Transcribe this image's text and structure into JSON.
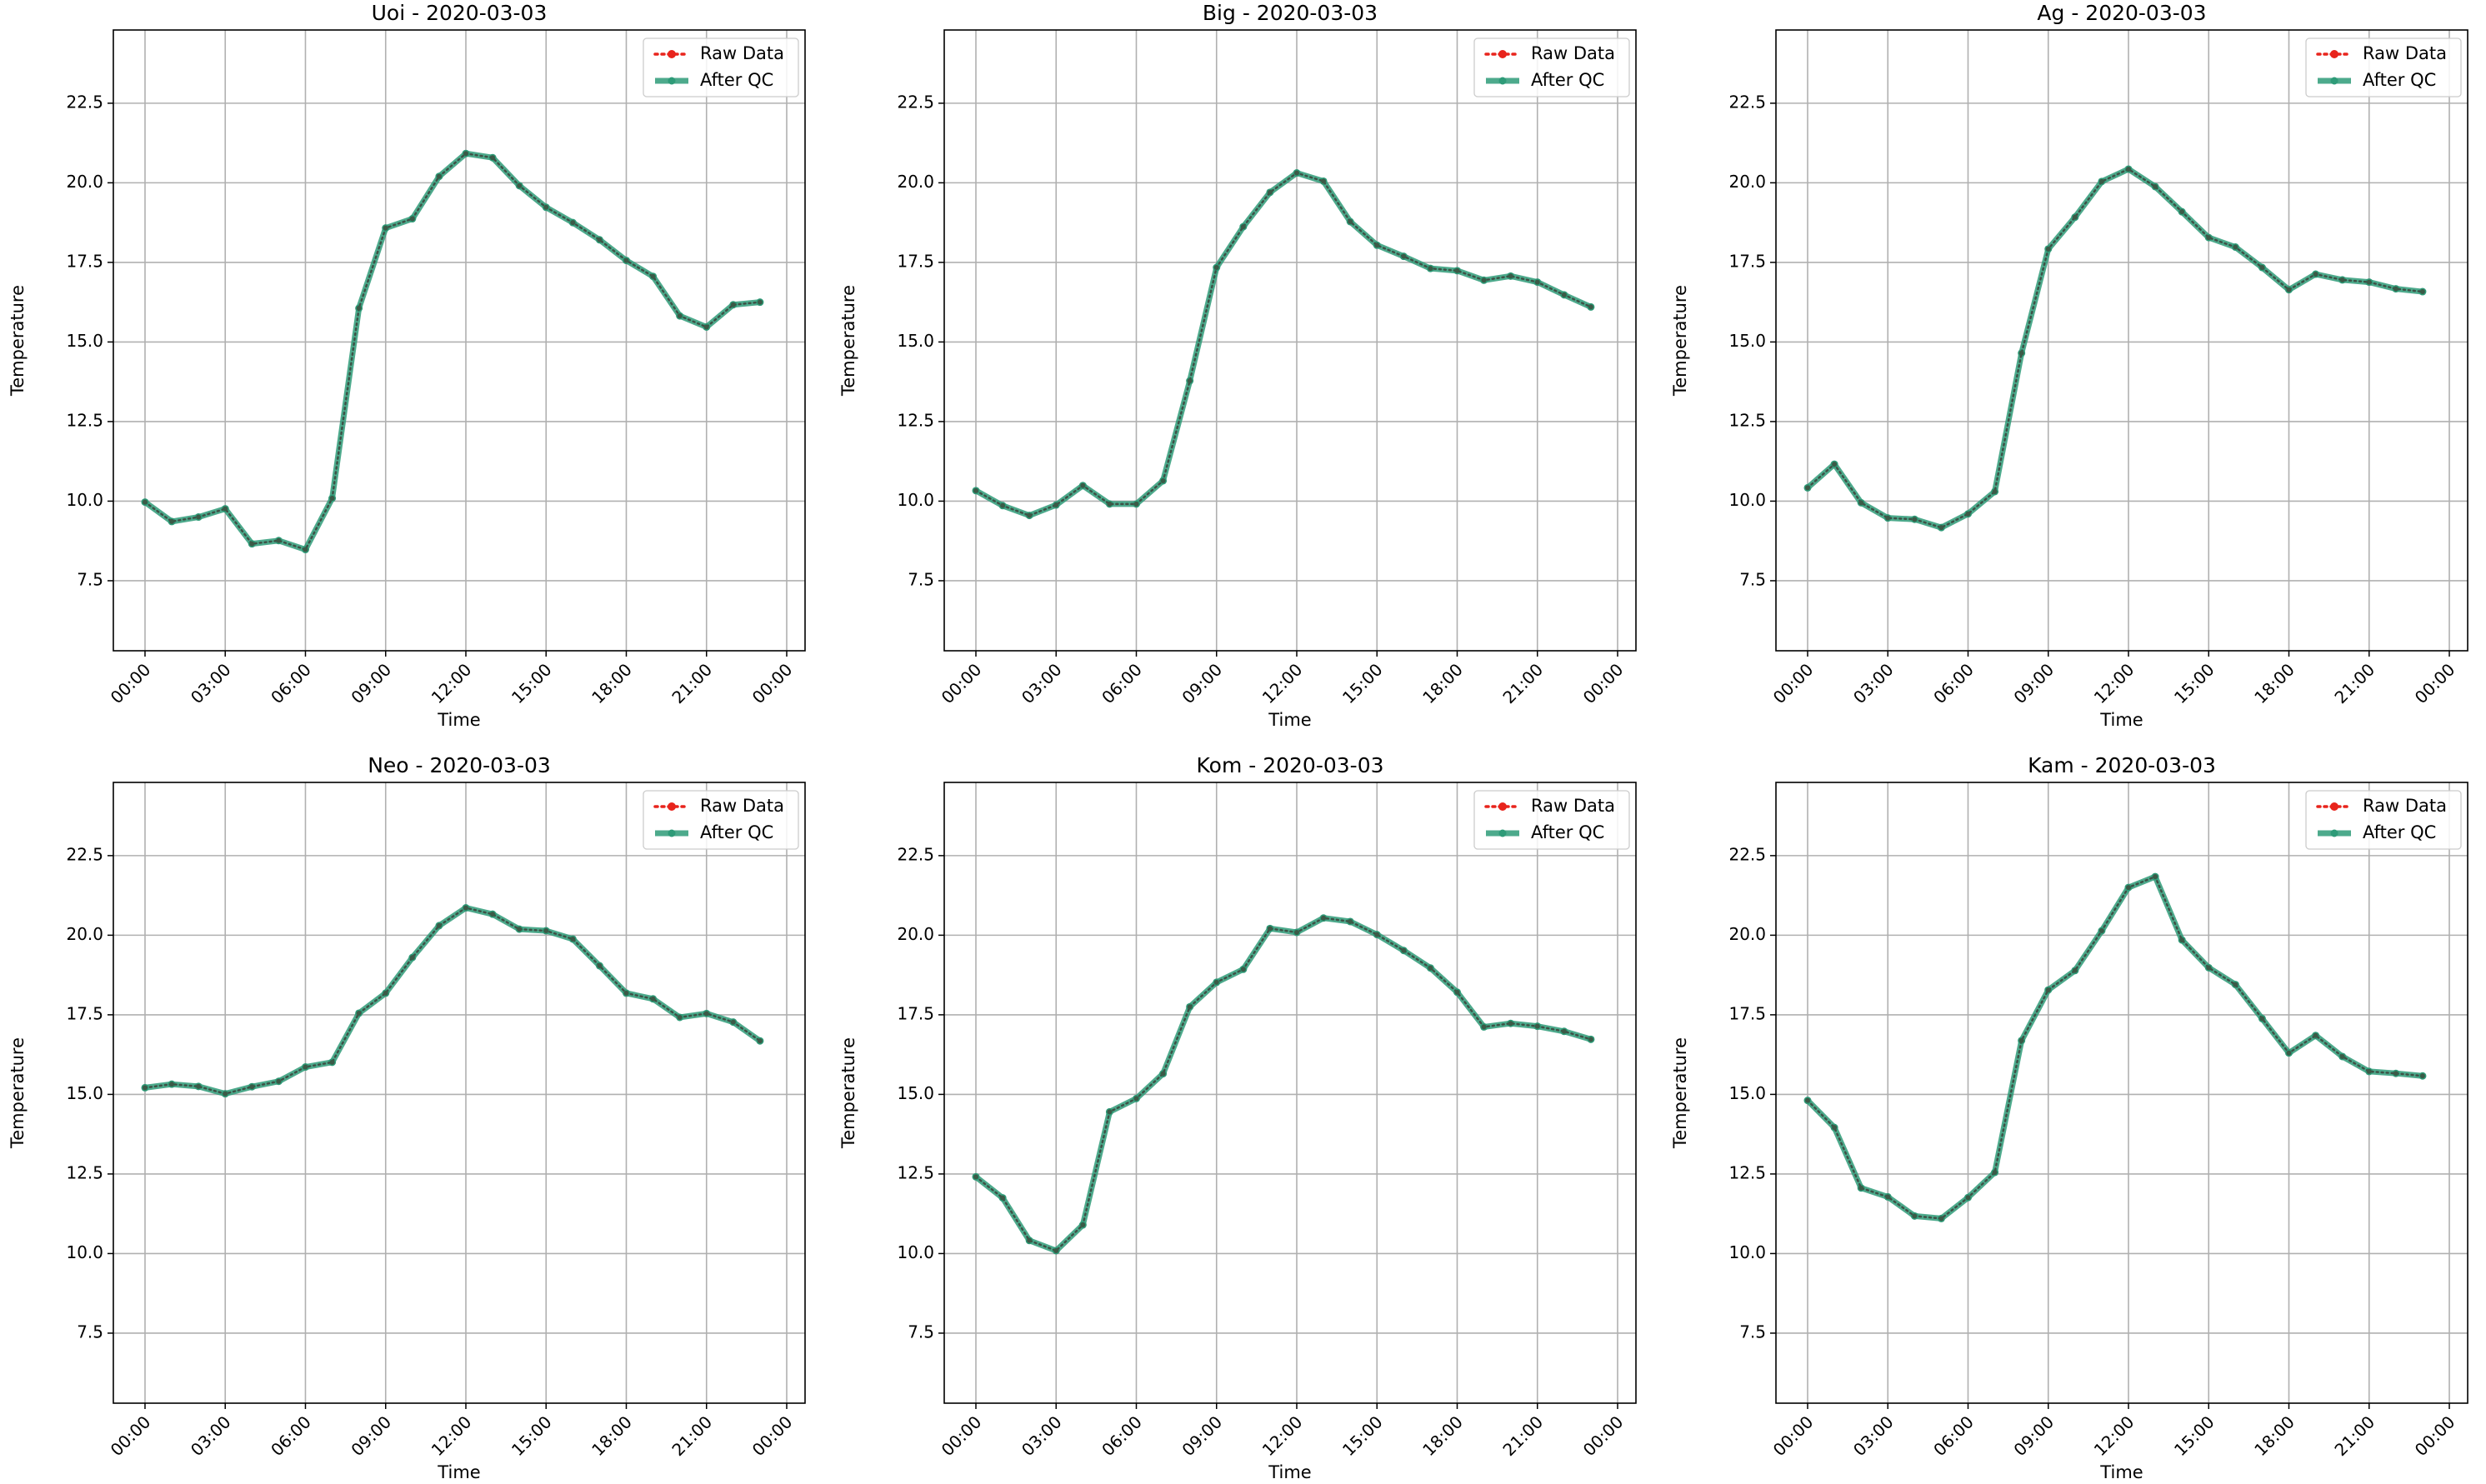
{
  "chart_data": [
    {
      "type": "line",
      "title": "Uoi - 2020-03-03",
      "xlabel": "Time",
      "ylabel": "Temperature",
      "ylim": [
        5.3,
        24.8
      ],
      "xlim": [
        "00:00",
        "24:00"
      ],
      "yticks": [
        7.5,
        10.0,
        12.5,
        15.0,
        17.5,
        20.0,
        22.5
      ],
      "yticklabels": [
        "7.5",
        "10.0",
        "12.5",
        "15.0",
        "17.5",
        "20.0",
        "22.5"
      ],
      "xticks": [
        0,
        3,
        6,
        9,
        12,
        15,
        18,
        21,
        24
      ],
      "xticklabels": [
        "00:00",
        "03:00",
        "06:00",
        "09:00",
        "12:00",
        "15:00",
        "18:00",
        "21:00",
        "00:00"
      ],
      "grid": true,
      "legend_position": "top-right",
      "x": [
        "00:00",
        "01:00",
        "02:00",
        "03:00",
        "04:00",
        "05:00",
        "06:00",
        "07:00",
        "08:00",
        "09:00",
        "10:00",
        "11:00",
        "12:00",
        "13:00",
        "14:00",
        "15:00",
        "16:00",
        "17:00",
        "18:00",
        "19:00",
        "20:00",
        "21:00",
        "22:00",
        "23:00"
      ],
      "series": [
        {
          "name": "Raw Data",
          "color": "#e8241c",
          "style": "dotted",
          "values": [
            9.97,
            9.36,
            9.5,
            9.76,
            8.66,
            8.76,
            8.48,
            10.09,
            16.06,
            18.58,
            18.87,
            20.2,
            20.92,
            20.79,
            19.91,
            19.23,
            18.75,
            18.21,
            17.56,
            17.06,
            15.82,
            15.47,
            16.17,
            16.25
          ]
        },
        {
          "name": "After QC",
          "color": "#2e9b78",
          "style": "solid",
          "values": [
            9.97,
            9.36,
            9.5,
            9.76,
            8.66,
            8.76,
            8.48,
            10.09,
            16.06,
            18.58,
            18.87,
            20.2,
            20.92,
            20.79,
            19.91,
            19.23,
            18.75,
            18.21,
            17.56,
            17.06,
            15.82,
            15.47,
            16.17,
            16.25
          ]
        }
      ]
    },
    {
      "type": "line",
      "title": "Big - 2020-03-03",
      "xlabel": "Time",
      "ylabel": "Temperature",
      "ylim": [
        5.3,
        24.8
      ],
      "xlim": [
        "00:00",
        "24:00"
      ],
      "yticks": [
        7.5,
        10.0,
        12.5,
        15.0,
        17.5,
        20.0,
        22.5
      ],
      "yticklabels": [
        "7.5",
        "10.0",
        "12.5",
        "15.0",
        "17.5",
        "20.0",
        "22.5"
      ],
      "xticks": [
        0,
        3,
        6,
        9,
        12,
        15,
        18,
        21,
        24
      ],
      "xticklabels": [
        "00:00",
        "03:00",
        "06:00",
        "09:00",
        "12:00",
        "15:00",
        "18:00",
        "21:00",
        "00:00"
      ],
      "grid": true,
      "legend_position": "top-right",
      "x": [
        "00:00",
        "01:00",
        "02:00",
        "03:00",
        "04:00",
        "05:00",
        "06:00",
        "07:00",
        "08:00",
        "09:00",
        "10:00",
        "11:00",
        "12:00",
        "13:00",
        "14:00",
        "15:00",
        "16:00",
        "17:00",
        "18:00",
        "19:00",
        "20:00",
        "21:00",
        "22:00",
        "23:00"
      ],
      "series": [
        {
          "name": "Raw Data",
          "color": "#e8241c",
          "style": "dotted",
          "values": [
            10.33,
            9.86,
            9.55,
            9.88,
            10.49,
            9.91,
            9.91,
            10.64,
            13.78,
            17.34,
            18.62,
            19.7,
            20.31,
            20.05,
            18.78,
            18.04,
            17.69,
            17.31,
            17.24,
            16.94,
            17.07,
            16.88,
            16.48,
            16.1
          ]
        },
        {
          "name": "After QC",
          "color": "#2e9b78",
          "style": "solid",
          "values": [
            10.33,
            9.86,
            9.55,
            9.88,
            10.49,
            9.91,
            9.91,
            10.64,
            13.78,
            17.34,
            18.62,
            19.7,
            20.31,
            20.05,
            18.78,
            18.04,
            17.69,
            17.31,
            17.24,
            16.94,
            17.07,
            16.88,
            16.48,
            16.1
          ]
        }
      ]
    },
    {
      "type": "line",
      "title": "Ag - 2020-03-03",
      "xlabel": "Time",
      "ylabel": "Temperature",
      "ylim": [
        5.3,
        24.8
      ],
      "xlim": [
        "00:00",
        "24:00"
      ],
      "yticks": [
        7.5,
        10.0,
        12.5,
        15.0,
        17.5,
        20.0,
        22.5
      ],
      "yticklabels": [
        "7.5",
        "10.0",
        "12.5",
        "15.0",
        "17.5",
        "20.0",
        "22.5"
      ],
      "xticks": [
        0,
        3,
        6,
        9,
        12,
        15,
        18,
        21,
        24
      ],
      "xticklabels": [
        "00:00",
        "03:00",
        "06:00",
        "09:00",
        "12:00",
        "15:00",
        "18:00",
        "21:00",
        "00:00"
      ],
      "grid": true,
      "legend_position": "top-right",
      "x": [
        "00:00",
        "01:00",
        "02:00",
        "03:00",
        "04:00",
        "05:00",
        "06:00",
        "07:00",
        "08:00",
        "09:00",
        "10:00",
        "11:00",
        "12:00",
        "13:00",
        "14:00",
        "15:00",
        "16:00",
        "17:00",
        "18:00",
        "19:00",
        "20:00",
        "21:00",
        "22:00",
        "23:00"
      ],
      "series": [
        {
          "name": "Raw Data",
          "color": "#e8241c",
          "style": "dotted",
          "values": [
            10.42,
            11.16,
            9.95,
            9.47,
            9.43,
            9.17,
            9.6,
            10.3,
            14.65,
            17.92,
            18.92,
            20.04,
            20.43,
            19.88,
            19.09,
            18.28,
            17.98,
            17.34,
            16.64,
            17.13,
            16.95,
            16.88,
            16.67,
            16.58
          ]
        },
        {
          "name": "After QC",
          "color": "#2e9b78",
          "style": "solid",
          "values": [
            10.42,
            11.16,
            9.95,
            9.47,
            9.43,
            9.17,
            9.6,
            10.3,
            14.65,
            17.92,
            18.92,
            20.04,
            20.43,
            19.88,
            19.09,
            18.28,
            17.98,
            17.34,
            16.64,
            17.13,
            16.95,
            16.88,
            16.67,
            16.58
          ]
        }
      ]
    },
    {
      "type": "line",
      "title": "Neo - 2020-03-03",
      "xlabel": "Time",
      "ylabel": "Temperature",
      "ylim": [
        5.3,
        24.8
      ],
      "xlim": [
        "00:00",
        "24:00"
      ],
      "yticks": [
        7.5,
        10.0,
        12.5,
        15.0,
        17.5,
        20.0,
        22.5
      ],
      "yticklabels": [
        "7.5",
        "10.0",
        "12.5",
        "15.0",
        "17.5",
        "20.0",
        "22.5"
      ],
      "xticks": [
        0,
        3,
        6,
        9,
        12,
        15,
        18,
        21,
        24
      ],
      "xticklabels": [
        "00:00",
        "03:00",
        "06:00",
        "09:00",
        "12:00",
        "15:00",
        "18:00",
        "21:00",
        "00:00"
      ],
      "grid": true,
      "legend_position": "top-right",
      "x": [
        "00:00",
        "01:00",
        "02:00",
        "03:00",
        "04:00",
        "05:00",
        "06:00",
        "07:00",
        "08:00",
        "09:00",
        "10:00",
        "11:00",
        "12:00",
        "13:00",
        "14:00",
        "15:00",
        "16:00",
        "17:00",
        "18:00",
        "19:00",
        "20:00",
        "21:00",
        "22:00",
        "23:00"
      ],
      "series": [
        {
          "name": "Raw Data",
          "color": "#e8241c",
          "style": "dotted",
          "values": [
            15.21,
            15.32,
            15.25,
            15.02,
            15.24,
            15.41,
            15.86,
            16.01,
            17.55,
            18.18,
            19.3,
            20.3,
            20.86,
            20.66,
            20.19,
            20.14,
            19.88,
            19.04,
            18.18,
            18.0,
            17.42,
            17.54,
            17.27,
            16.68
          ]
        },
        {
          "name": "After QC",
          "color": "#2e9b78",
          "style": "solid",
          "values": [
            15.21,
            15.32,
            15.25,
            15.02,
            15.24,
            15.41,
            15.86,
            16.01,
            17.55,
            18.18,
            19.3,
            20.3,
            20.86,
            20.66,
            20.19,
            20.14,
            19.88,
            19.04,
            18.18,
            18.0,
            17.42,
            17.54,
            17.27,
            16.68
          ]
        }
      ]
    },
    {
      "type": "line",
      "title": "Kom - 2020-03-03",
      "xlabel": "Time",
      "ylabel": "Temperature",
      "ylim": [
        5.3,
        24.8
      ],
      "xlim": [
        "00:00",
        "24:00"
      ],
      "yticks": [
        7.5,
        10.0,
        12.5,
        15.0,
        17.5,
        20.0,
        22.5
      ],
      "yticklabels": [
        "7.5",
        "10.0",
        "12.5",
        "15.0",
        "17.5",
        "20.0",
        "22.5"
      ],
      "xticks": [
        0,
        3,
        6,
        9,
        12,
        15,
        18,
        21,
        24
      ],
      "xticklabels": [
        "00:00",
        "03:00",
        "06:00",
        "09:00",
        "12:00",
        "15:00",
        "18:00",
        "21:00",
        "00:00"
      ],
      "grid": true,
      "legend_position": "top-right",
      "x": [
        "00:00",
        "01:00",
        "02:00",
        "03:00",
        "04:00",
        "05:00",
        "06:00",
        "07:00",
        "08:00",
        "09:00",
        "10:00",
        "11:00",
        "12:00",
        "13:00",
        "14:00",
        "15:00",
        "16:00",
        "17:00",
        "18:00",
        "19:00",
        "20:00",
        "21:00",
        "22:00",
        "23:00"
      ],
      "series": [
        {
          "name": "Raw Data",
          "color": "#e8241c",
          "style": "dotted",
          "values": [
            12.41,
            11.75,
            10.41,
            10.09,
            10.9,
            14.45,
            14.87,
            15.65,
            17.75,
            18.52,
            18.93,
            20.21,
            20.09,
            20.54,
            20.43,
            20.02,
            19.52,
            18.97,
            18.21,
            17.12,
            17.23,
            17.14,
            16.98,
            16.73
          ]
        },
        {
          "name": "After QC",
          "color": "#2e9b78",
          "style": "solid",
          "values": [
            12.41,
            11.75,
            10.41,
            10.09,
            10.9,
            14.45,
            14.87,
            15.65,
            17.75,
            18.52,
            18.93,
            20.21,
            20.09,
            20.54,
            20.43,
            20.02,
            19.52,
            18.97,
            18.21,
            17.12,
            17.23,
            17.14,
            16.98,
            16.73
          ]
        }
      ]
    },
    {
      "type": "line",
      "title": "Kam - 2020-03-03",
      "xlabel": "Time",
      "ylabel": "Temperature",
      "ylim": [
        5.3,
        24.8
      ],
      "xlim": [
        "00:00",
        "24:00"
      ],
      "yticks": [
        7.5,
        10.0,
        12.5,
        15.0,
        17.5,
        20.0,
        22.5
      ],
      "yticklabels": [
        "7.5",
        "10.0",
        "12.5",
        "15.0",
        "17.5",
        "20.0",
        "22.5"
      ],
      "xticks": [
        0,
        3,
        6,
        9,
        12,
        15,
        18,
        21,
        24
      ],
      "xticklabels": [
        "00:00",
        "03:00",
        "06:00",
        "09:00",
        "12:00",
        "15:00",
        "18:00",
        "21:00",
        "00:00"
      ],
      "grid": true,
      "legend_position": "top-right",
      "x": [
        "00:00",
        "01:00",
        "02:00",
        "03:00",
        "04:00",
        "05:00",
        "06:00",
        "07:00",
        "08:00",
        "09:00",
        "10:00",
        "11:00",
        "12:00",
        "13:00",
        "14:00",
        "15:00",
        "16:00",
        "17:00",
        "18:00",
        "19:00",
        "20:00",
        "21:00",
        "22:00",
        "23:00"
      ],
      "series": [
        {
          "name": "Raw Data",
          "color": "#e8241c",
          "style": "dotted",
          "values": [
            14.81,
            13.96,
            12.06,
            11.78,
            11.18,
            11.1,
            11.76,
            12.55,
            16.69,
            18.28,
            18.89,
            20.14,
            21.5,
            21.84,
            19.85,
            18.98,
            18.45,
            17.38,
            16.3,
            16.85,
            16.19,
            15.72,
            15.66,
            15.58
          ]
        },
        {
          "name": "After QC",
          "color": "#2e9b78",
          "style": "solid",
          "values": [
            14.81,
            13.96,
            12.06,
            11.78,
            11.18,
            11.1,
            11.76,
            12.55,
            16.69,
            18.28,
            18.89,
            20.14,
            21.5,
            21.84,
            19.85,
            18.98,
            18.45,
            17.38,
            16.3,
            16.85,
            16.19,
            15.72,
            15.66,
            15.58
          ]
        }
      ]
    }
  ]
}
